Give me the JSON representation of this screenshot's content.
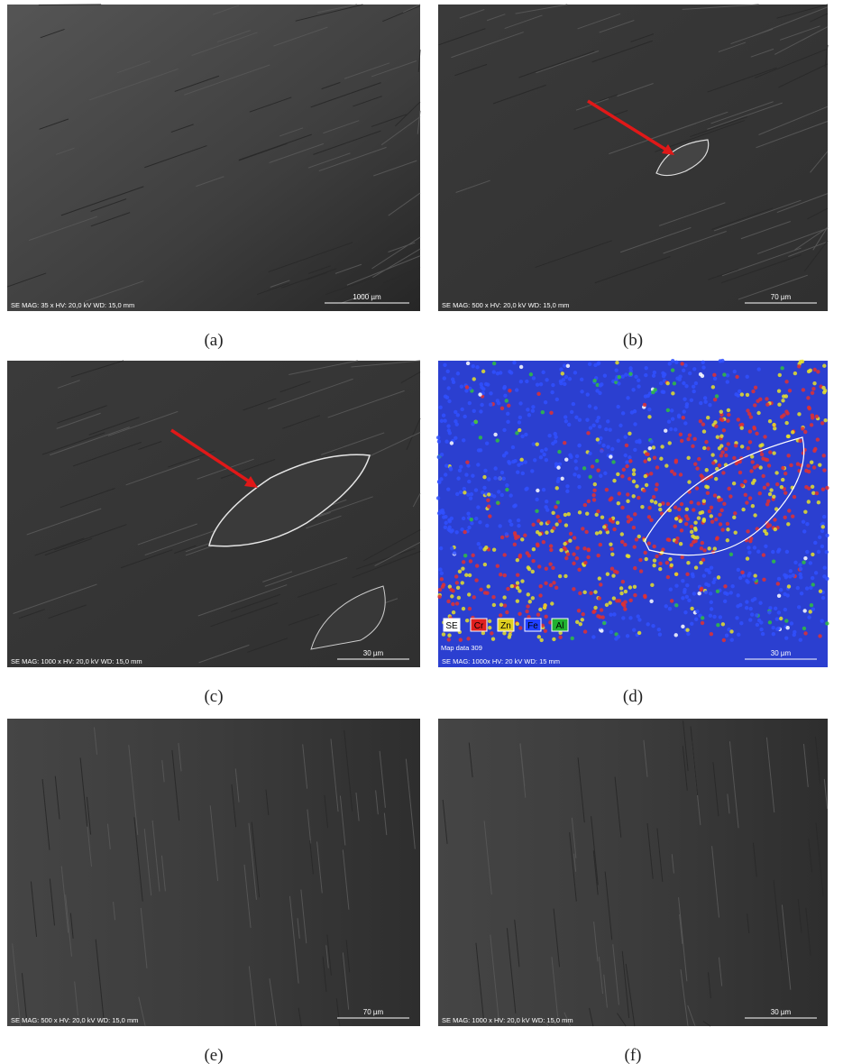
{
  "figure": {
    "panels": [
      {
        "caption": "(a)",
        "info": "SE  MAG: 35 x  HV: 20,0 kV  WD: 15,0 mm",
        "scale": "1000 µm"
      },
      {
        "caption": "(b)",
        "info": "SE  MAG: 500 x  HV: 20,0 kV  WD: 15,0 mm",
        "scale": "70 µm"
      },
      {
        "caption": "(c)",
        "info": "SE  MAG: 1000 x  HV: 20,0 kV  WD: 15,0 mm",
        "scale": "30 µm"
      },
      {
        "caption": "(d)",
        "info": "SE  MAG: 1000x  HV: 20 kV  WD: 15 mm",
        "scale": "30 µm",
        "map": "Map data 309",
        "legend": [
          "SE",
          "Cr",
          "Zn",
          "Fe",
          "Al"
        ]
      },
      {
        "caption": "(e)",
        "info": "SE  MAG: 500 x  HV: 20,0 kV  WD: 15,0 mm",
        "scale": "70 µm"
      },
      {
        "caption": "(f)",
        "info": "SE  MAG: 1000 x  HV: 20,0 kV  WD: 15,0 mm",
        "scale": "30 µm"
      }
    ]
  }
}
